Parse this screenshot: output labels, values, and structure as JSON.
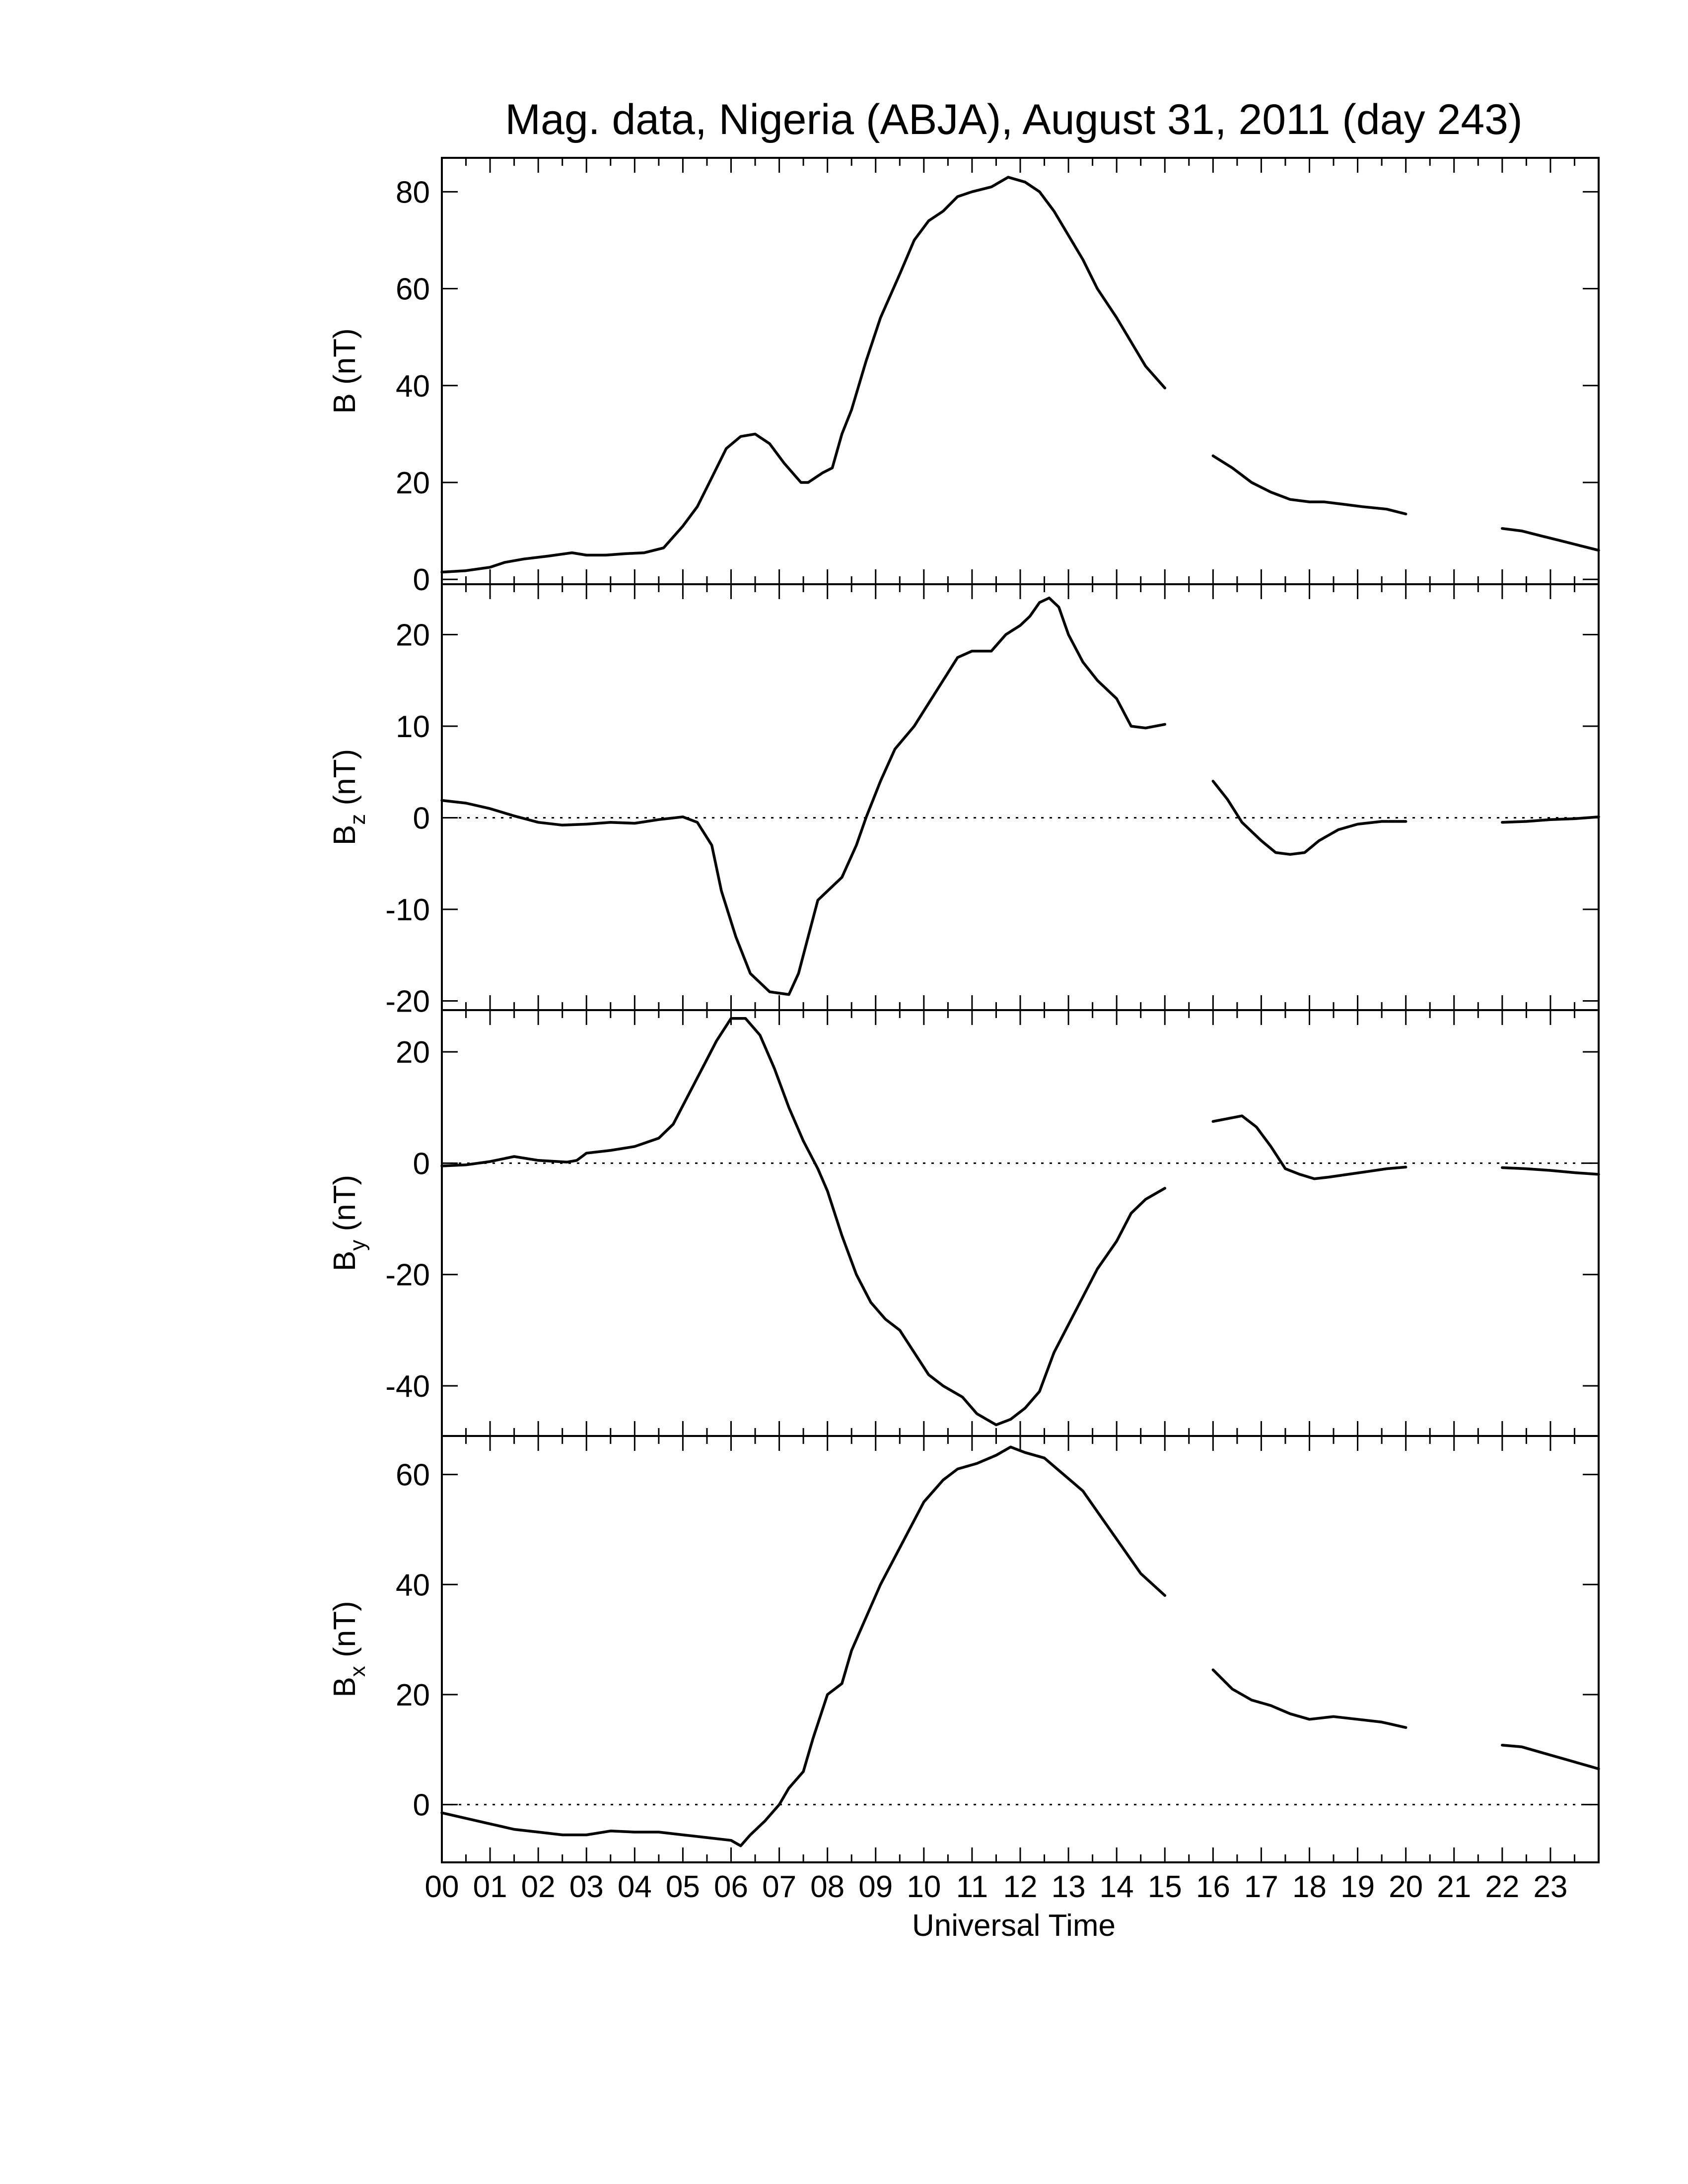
{
  "chart_data": {
    "type": "line",
    "title": "Mag. data, Nigeria (ABJA), August 31, 2011 (day 243)",
    "xlabel": "Universal Time",
    "xlim": [
      0,
      24
    ],
    "x_tick_labels": [
      "00",
      "01",
      "02",
      "03",
      "04",
      "05",
      "06",
      "07",
      "08",
      "09",
      "10",
      "11",
      "12",
      "13",
      "14",
      "15",
      "16",
      "17",
      "18",
      "19",
      "20",
      "21",
      "22",
      "23"
    ],
    "panels": [
      {
        "ylabel": {
          "base": "B",
          "sub": "",
          "unit": " (nT)"
        },
        "ylim": [
          -1,
          87
        ],
        "y_ticks": [
          0,
          20,
          40,
          60,
          80
        ],
        "y_tick_labels": [
          "0",
          "20",
          "40",
          "60",
          "80"
        ],
        "zero_line": false,
        "segments": [
          [
            [
              0.0,
              1.5
            ],
            [
              0.5,
              1.8
            ],
            [
              1.0,
              2.5
            ],
            [
              1.3,
              3.5
            ],
            [
              1.7,
              4.2
            ],
            [
              2.2,
              4.8
            ],
            [
              2.7,
              5.5
            ],
            [
              3.0,
              5.0
            ],
            [
              3.4,
              5.0
            ],
            [
              3.8,
              5.3
            ],
            [
              4.2,
              5.5
            ],
            [
              4.6,
              6.5
            ],
            [
              5.0,
              11
            ],
            [
              5.3,
              15
            ],
            [
              5.6,
              21
            ],
            [
              5.9,
              27
            ],
            [
              6.2,
              29.5
            ],
            [
              6.5,
              30
            ],
            [
              6.8,
              28
            ],
            [
              7.1,
              24
            ],
            [
              7.45,
              20
            ],
            [
              7.6,
              20
            ],
            [
              7.9,
              22
            ],
            [
              8.1,
              23
            ],
            [
              8.3,
              30
            ],
            [
              8.5,
              35
            ],
            [
              8.8,
              45
            ],
            [
              9.1,
              54
            ],
            [
              9.5,
              63
            ],
            [
              9.8,
              70
            ],
            [
              10.1,
              74
            ],
            [
              10.4,
              76
            ],
            [
              10.7,
              79
            ],
            [
              11.0,
              80
            ],
            [
              11.4,
              81
            ],
            [
              11.75,
              83
            ],
            [
              12.1,
              82
            ],
            [
              12.4,
              80
            ],
            [
              12.7,
              76
            ],
            [
              13.0,
              71
            ],
            [
              13.3,
              66
            ],
            [
              13.6,
              60
            ],
            [
              14.0,
              54
            ],
            [
              14.3,
              49
            ],
            [
              14.6,
              44
            ],
            [
              15.0,
              39.5
            ]
          ],
          [
            [
              16.0,
              25.5
            ],
            [
              16.4,
              23
            ],
            [
              16.8,
              20
            ],
            [
              17.2,
              18
            ],
            [
              17.6,
              16.5
            ],
            [
              18.0,
              16
            ],
            [
              18.3,
              16
            ],
            [
              18.7,
              15.5
            ],
            [
              19.1,
              15
            ],
            [
              19.6,
              14.5
            ],
            [
              20.0,
              13.5
            ]
          ],
          [
            [
              22.0,
              10.5
            ],
            [
              22.4,
              10
            ],
            [
              22.8,
              9
            ],
            [
              23.2,
              8
            ],
            [
              23.6,
              7
            ],
            [
              24.0,
              6
            ]
          ]
        ]
      },
      {
        "ylabel": {
          "base": "B",
          "sub": "z",
          "unit": " (nT)"
        },
        "ylim": [
          -21,
          25.5
        ],
        "y_ticks": [
          -20,
          -10,
          0,
          10,
          20
        ],
        "y_tick_labels": [
          "-20",
          "-10",
          "0",
          "10",
          "20"
        ],
        "zero_line": true,
        "segments": [
          [
            [
              0.0,
              1.9
            ],
            [
              0.5,
              1.6
            ],
            [
              1.0,
              1.0
            ],
            [
              1.5,
              0.2
            ],
            [
              2.0,
              -0.5
            ],
            [
              2.5,
              -0.8
            ],
            [
              3.0,
              -0.7
            ],
            [
              3.5,
              -0.5
            ],
            [
              4.0,
              -0.6
            ],
            [
              4.5,
              -0.2
            ],
            [
              5.0,
              0.1
            ],
            [
              5.3,
              -0.5
            ],
            [
              5.6,
              -3
            ],
            [
              5.8,
              -8
            ],
            [
              6.1,
              -13
            ],
            [
              6.4,
              -17
            ],
            [
              6.8,
              -19
            ],
            [
              7.2,
              -19.3
            ],
            [
              7.4,
              -17
            ],
            [
              7.6,
              -13
            ],
            [
              7.8,
              -9
            ],
            [
              8.0,
              -8
            ],
            [
              8.3,
              -6.5
            ],
            [
              8.6,
              -3
            ],
            [
              8.8,
              0
            ],
            [
              9.1,
              4
            ],
            [
              9.4,
              7.5
            ],
            [
              9.8,
              10
            ],
            [
              10.1,
              12.5
            ],
            [
              10.4,
              15
            ],
            [
              10.7,
              17.5
            ],
            [
              11.0,
              18.2
            ],
            [
              11.4,
              18.2
            ],
            [
              11.7,
              20
            ],
            [
              12.0,
              21
            ],
            [
              12.2,
              22
            ],
            [
              12.4,
              23.5
            ],
            [
              12.6,
              24
            ],
            [
              12.8,
              23
            ],
            [
              13.0,
              20
            ],
            [
              13.3,
              17
            ],
            [
              13.6,
              15
            ],
            [
              14.0,
              13
            ],
            [
              14.3,
              10
            ],
            [
              14.6,
              9.8
            ],
            [
              15.0,
              10.2
            ]
          ],
          [
            [
              16.0,
              4
            ],
            [
              16.3,
              2
            ],
            [
              16.6,
              -0.5
            ],
            [
              17.0,
              -2.5
            ],
            [
              17.3,
              -3.8
            ],
            [
              17.6,
              -4
            ],
            [
              17.9,
              -3.8
            ],
            [
              18.2,
              -2.5
            ],
            [
              18.6,
              -1.3
            ],
            [
              19.0,
              -0.7
            ],
            [
              19.5,
              -0.4
            ],
            [
              20.0,
              -0.4
            ]
          ],
          [
            [
              22.0,
              -0.5
            ],
            [
              22.5,
              -0.4
            ],
            [
              23.0,
              -0.2
            ],
            [
              23.5,
              -0.1
            ],
            [
              24.0,
              0.1
            ]
          ]
        ]
      },
      {
        "ylabel": {
          "base": "B",
          "sub": "y",
          "unit": " (nT)"
        },
        "ylim": [
          -49,
          27.5
        ],
        "y_ticks": [
          -40,
          -20,
          0,
          20
        ],
        "y_tick_labels": [
          "-40",
          "-20",
          "0",
          "20"
        ],
        "zero_line": true,
        "segments": [
          [
            [
              0.0,
              -0.5
            ],
            [
              0.5,
              -0.3
            ],
            [
              1.0,
              0.3
            ],
            [
              1.5,
              1.2
            ],
            [
              2.0,
              0.5
            ],
            [
              2.6,
              0.2
            ],
            [
              2.8,
              0.5
            ],
            [
              3.0,
              1.8
            ],
            [
              3.5,
              2.3
            ],
            [
              4.0,
              3
            ],
            [
              4.5,
              4.5
            ],
            [
              4.8,
              7
            ],
            [
              5.1,
              12
            ],
            [
              5.4,
              17
            ],
            [
              5.7,
              22
            ],
            [
              6.0,
              26
            ],
            [
              6.3,
              26
            ],
            [
              6.6,
              23
            ],
            [
              6.9,
              17
            ],
            [
              7.2,
              10
            ],
            [
              7.5,
              4
            ],
            [
              7.8,
              -1
            ],
            [
              8.0,
              -5
            ],
            [
              8.3,
              -13
            ],
            [
              8.6,
              -20
            ],
            [
              8.9,
              -25
            ],
            [
              9.2,
              -28
            ],
            [
              9.5,
              -30
            ],
            [
              9.8,
              -34
            ],
            [
              10.1,
              -38
            ],
            [
              10.4,
              -40
            ],
            [
              10.8,
              -42
            ],
            [
              11.1,
              -45
            ],
            [
              11.5,
              -47
            ],
            [
              11.8,
              -46
            ],
            [
              12.1,
              -44
            ],
            [
              12.4,
              -41
            ],
            [
              12.7,
              -34
            ],
            [
              13.0,
              -29
            ],
            [
              13.3,
              -24
            ],
            [
              13.6,
              -19
            ],
            [
              14.0,
              -14
            ],
            [
              14.3,
              -9
            ],
            [
              14.6,
              -6.5
            ],
            [
              15.0,
              -4.5
            ]
          ],
          [
            [
              16.0,
              7.5
            ],
            [
              16.3,
              8
            ],
            [
              16.6,
              8.5
            ],
            [
              16.9,
              6.5
            ],
            [
              17.2,
              3
            ],
            [
              17.5,
              -1
            ],
            [
              17.8,
              -2
            ],
            [
              18.1,
              -2.8
            ],
            [
              18.4,
              -2.5
            ],
            [
              18.8,
              -2
            ],
            [
              19.2,
              -1.5
            ],
            [
              19.6,
              -1
            ],
            [
              20.0,
              -0.7
            ]
          ],
          [
            [
              22.0,
              -0.8
            ],
            [
              22.5,
              -1
            ],
            [
              23.0,
              -1.3
            ],
            [
              23.5,
              -1.7
            ],
            [
              24.0,
              -2
            ]
          ]
        ]
      },
      {
        "ylabel": {
          "base": "B",
          "sub": "x",
          "unit": " (nT)"
        },
        "ylim": [
          -10.5,
          67
        ],
        "y_ticks": [
          0,
          20,
          40,
          60
        ],
        "y_tick_labels": [
          "0",
          "20",
          "40",
          "60"
        ],
        "zero_line": true,
        "segments": [
          [
            [
              0.0,
              -1.5
            ],
            [
              0.5,
              -2.5
            ],
            [
              1.0,
              -3.5
            ],
            [
              1.5,
              -4.5
            ],
            [
              2.0,
              -5
            ],
            [
              2.5,
              -5.5
            ],
            [
              3.0,
              -5.5
            ],
            [
              3.5,
              -4.8
            ],
            [
              4.0,
              -5
            ],
            [
              4.5,
              -5
            ],
            [
              5.0,
              -5.5
            ],
            [
              5.5,
              -6
            ],
            [
              6.0,
              -6.5
            ],
            [
              6.2,
              -7.5
            ],
            [
              6.4,
              -5.5
            ],
            [
              6.7,
              -3
            ],
            [
              7.0,
              0
            ],
            [
              7.2,
              3
            ],
            [
              7.5,
              6
            ],
            [
              7.7,
              12
            ],
            [
              8.0,
              20
            ],
            [
              8.3,
              22
            ],
            [
              8.5,
              28
            ],
            [
              8.8,
              34
            ],
            [
              9.1,
              40
            ],
            [
              9.4,
              45
            ],
            [
              9.7,
              50
            ],
            [
              10.0,
              55
            ],
            [
              10.4,
              59
            ],
            [
              10.7,
              61
            ],
            [
              11.1,
              62
            ],
            [
              11.5,
              63.5
            ],
            [
              11.8,
              65
            ],
            [
              12.1,
              64
            ],
            [
              12.5,
              63
            ],
            [
              12.9,
              60
            ],
            [
              13.3,
              57
            ],
            [
              13.7,
              52
            ],
            [
              14.1,
              47
            ],
            [
              14.5,
              42
            ],
            [
              15.0,
              38
            ]
          ],
          [
            [
              16.0,
              24.5
            ],
            [
              16.4,
              21
            ],
            [
              16.8,
              19
            ],
            [
              17.2,
              18
            ],
            [
              17.6,
              16.5
            ],
            [
              18.0,
              15.5
            ],
            [
              18.5,
              16
            ],
            [
              19.0,
              15.5
            ],
            [
              19.5,
              15
            ],
            [
              20.0,
              14
            ]
          ],
          [
            [
              22.0,
              10.8
            ],
            [
              22.4,
              10.5
            ],
            [
              22.8,
              9.5
            ],
            [
              23.2,
              8.5
            ],
            [
              23.6,
              7.5
            ],
            [
              24.0,
              6.5
            ]
          ]
        ]
      }
    ]
  }
}
